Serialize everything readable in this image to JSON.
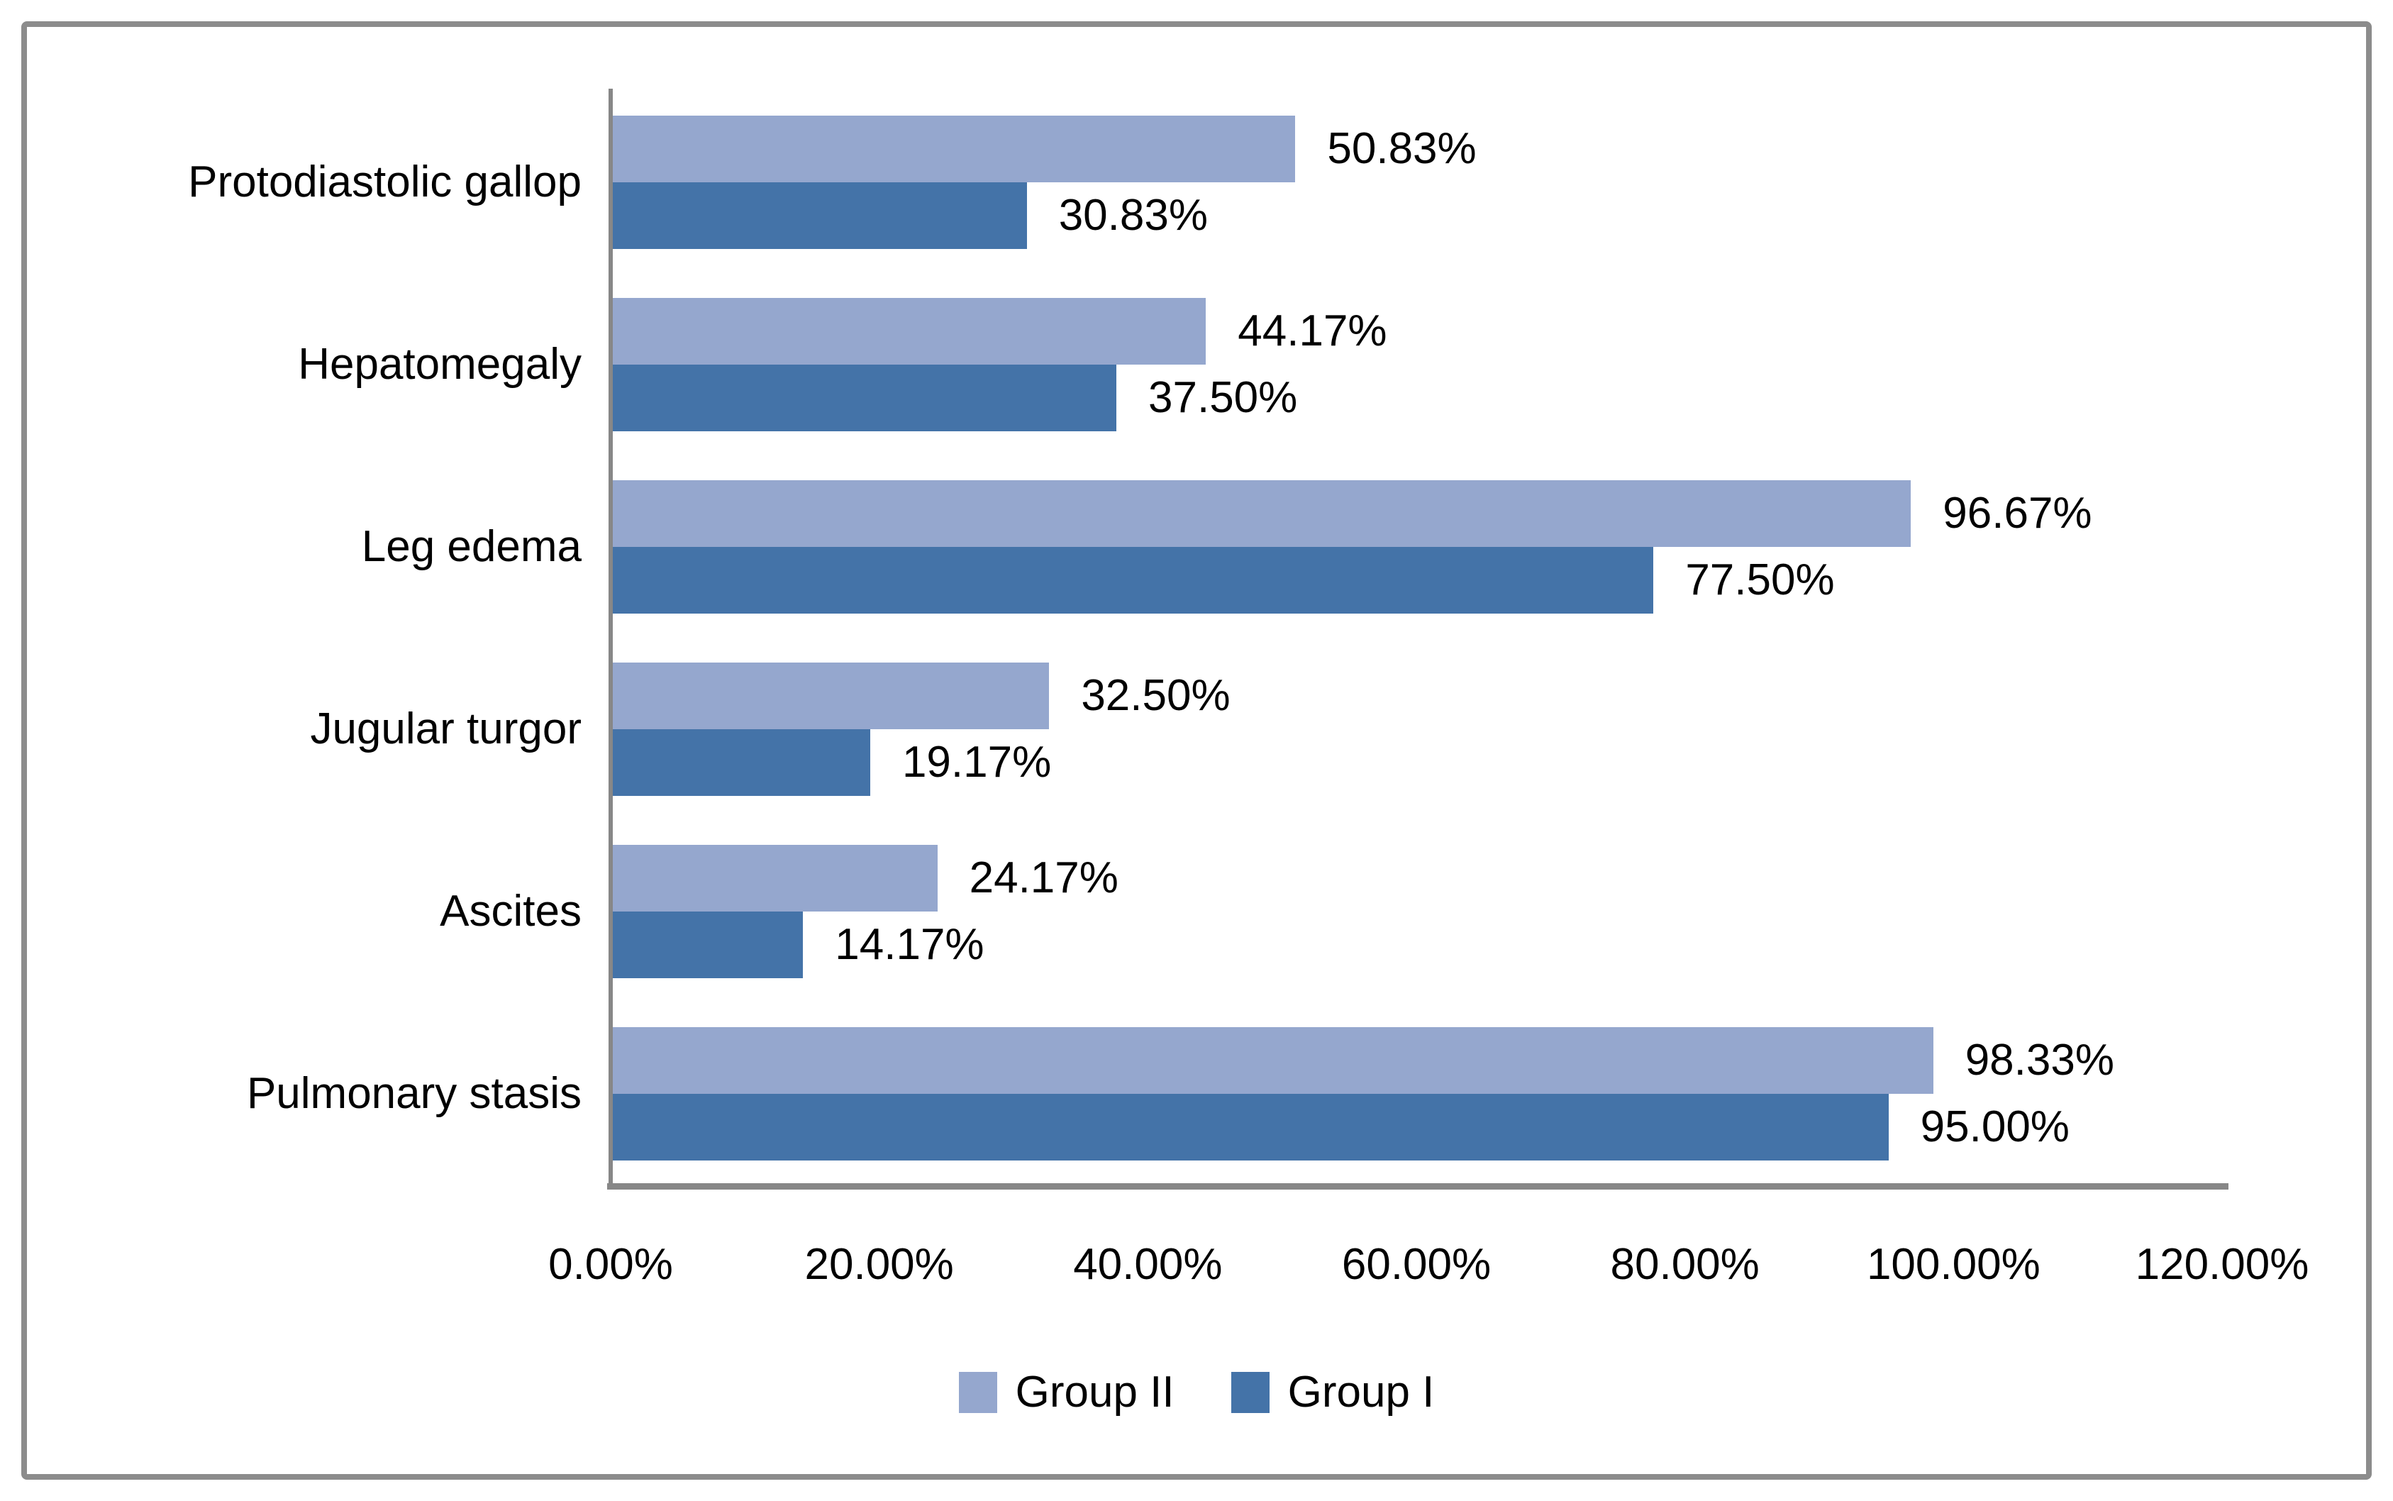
{
  "chart_data": {
    "type": "bar",
    "orientation": "horizontal",
    "title": "",
    "xlabel": "",
    "ylabel": "",
    "categories": [
      "Protodiastolic gallop",
      "Hepatomegaly",
      "Leg edema",
      "Jugular turgor",
      "Ascites",
      "Pulmonary stasis"
    ],
    "series": [
      {
        "name": "Group II",
        "color": "#95a7ce",
        "values": [
          50.83,
          44.17,
          96.67,
          32.5,
          24.17,
          98.33
        ],
        "labels": [
          "50.83%",
          "44.17%",
          "96.67%",
          "32.50%",
          "24.17%",
          "98.33%"
        ]
      },
      {
        "name": "Group I",
        "color": "#4473a8",
        "values": [
          30.83,
          37.5,
          77.5,
          19.17,
          14.17,
          95.0
        ],
        "labels": [
          "30.83%",
          "37.50%",
          "77.50%",
          "19.17%",
          "14.17%",
          "95.00%"
        ]
      }
    ],
    "x_axis": {
      "min": 0,
      "max": 120,
      "step": 20,
      "tick_labels": [
        "0.00%",
        "20.00%",
        "40.00%",
        "60.00%",
        "80.00%",
        "100.00%",
        "120.00%"
      ]
    },
    "legend": [
      {
        "label": "Group II",
        "color": "#95a7ce"
      },
      {
        "label": "Group I",
        "color": "#4473a8"
      }
    ],
    "legend_position": "bottom",
    "grid": false,
    "colors": {
      "axis_line": "#878787",
      "frame_border": "#8c8c8c",
      "text": "#000000",
      "background": "#ffffff"
    }
  }
}
